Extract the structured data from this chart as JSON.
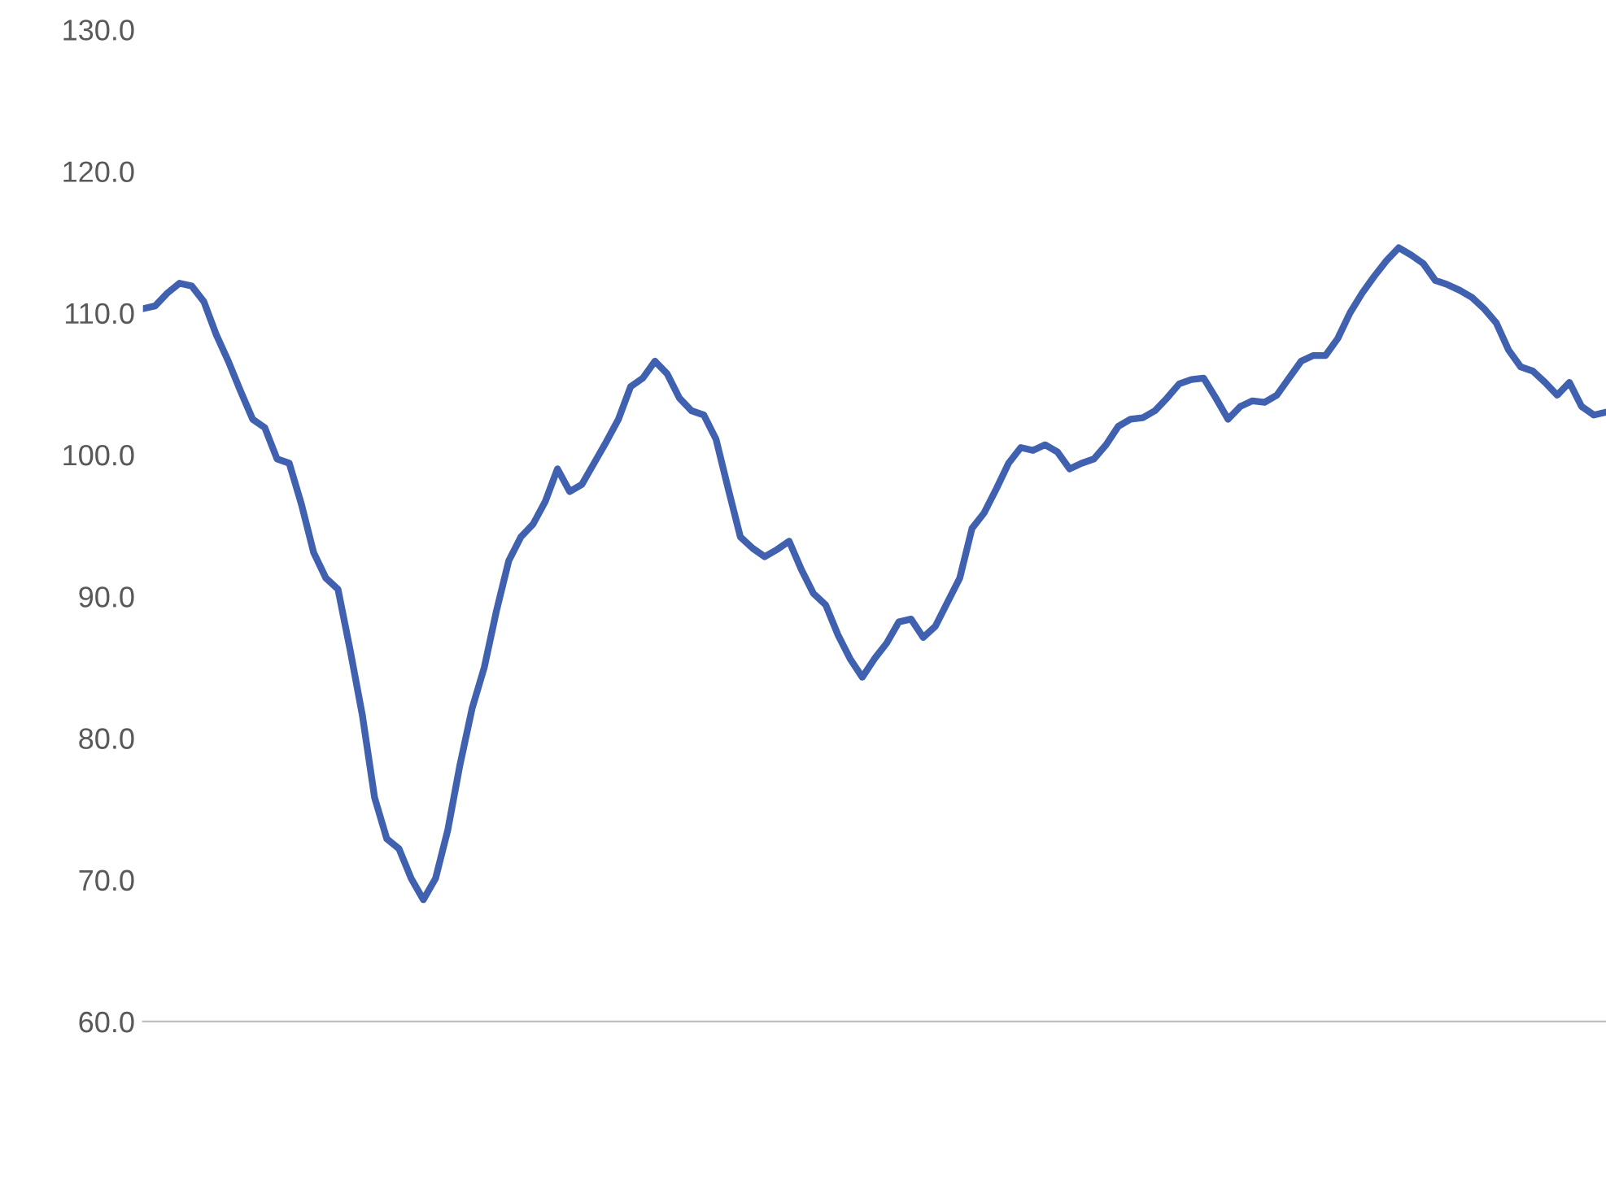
{
  "chart_data": {
    "type": "line",
    "categories": [
      null,
      null,
      null,
      null,
      null,
      null,
      null,
      null,
      null,
      null,
      null,
      null,
      null,
      null,
      null,
      null,
      null,
      null,
      null,
      null,
      null,
      null,
      null,
      null,
      null,
      null,
      null,
      null,
      null,
      null,
      null,
      null,
      null,
      null,
      null,
      null,
      null,
      null,
      null,
      null,
      null,
      null,
      null,
      null,
      null,
      null,
      null,
      null,
      null,
      null,
      null,
      null,
      null,
      null,
      null,
      null,
      null,
      null,
      null,
      null,
      null,
      null,
      null,
      null,
      null,
      null,
      null,
      null,
      null,
      null,
      null,
      null,
      null,
      null,
      null,
      null,
      null,
      null,
      null,
      null,
      null,
      null,
      null,
      null,
      null,
      null,
      null,
      null,
      null,
      null,
      null,
      null,
      null,
      null,
      null,
      null,
      null,
      null,
      null,
      null,
      null,
      null,
      null,
      null,
      null,
      null,
      null,
      null,
      null,
      null,
      null,
      null,
      null,
      null,
      null,
      null,
      null,
      null,
      null,
      null,
      null
    ],
    "series": [
      {
        "color": "#4060b0",
        "values": [
          110.3,
          110.5,
          111.4,
          112.1,
          111.9,
          110.8,
          108.5,
          106.6,
          104.5,
          102.5,
          101.9,
          99.7,
          99.4,
          96.5,
          93.1,
          91.3,
          90.5,
          86.2,
          81.6,
          75.8,
          72.9,
          72.2,
          70.1,
          68.6,
          70.1,
          73.5,
          78.1,
          82.1,
          85.0,
          89.0,
          92.5,
          94.2,
          95.1,
          96.7,
          99.0,
          97.4,
          97.9,
          99.4,
          100.9,
          102.5,
          104.8,
          105.4,
          106.6,
          105.7,
          104.0,
          103.1,
          102.8,
          101.1,
          97.6,
          94.2,
          93.4,
          92.8,
          93.3,
          93.9,
          91.9,
          90.2,
          89.4,
          87.3,
          85.6,
          84.3,
          85.6,
          86.7,
          88.2,
          88.4,
          87.1,
          87.9,
          89.6,
          91.3,
          94.8,
          95.9,
          97.6,
          99.4,
          100.5,
          100.3,
          100.7,
          100.2,
          99.0,
          99.4,
          99.7,
          100.7,
          102.0,
          102.5,
          102.6,
          103.1,
          104.0,
          105.0,
          105.3,
          105.4,
          104.0,
          102.5,
          103.4,
          103.8,
          103.7,
          104.2,
          105.4,
          106.6,
          107.0,
          107.0,
          108.2,
          110.0,
          111.4,
          112.6,
          113.7,
          114.6,
          114.1,
          113.5,
          112.3,
          112.0,
          111.6,
          111.1,
          110.3,
          109.3,
          107.4,
          106.2,
          105.9,
          105.1,
          104.2,
          105.1,
          103.4,
          102.8,
          103.0
        ]
      }
    ],
    "ylim": [
      60,
      130
    ],
    "yticks": [
      {
        "value": 60,
        "label": "60.0"
      },
      {
        "value": 70,
        "label": "70.0"
      },
      {
        "value": 80,
        "label": "80.0"
      },
      {
        "value": 90,
        "label": "90.0"
      },
      {
        "value": 100,
        "label": "100.0"
      },
      {
        "value": 110,
        "label": "110.0"
      },
      {
        "value": 120,
        "label": "120.0"
      },
      {
        "value": 130,
        "label": "130.0"
      }
    ],
    "grid": false,
    "legend": false
  }
}
